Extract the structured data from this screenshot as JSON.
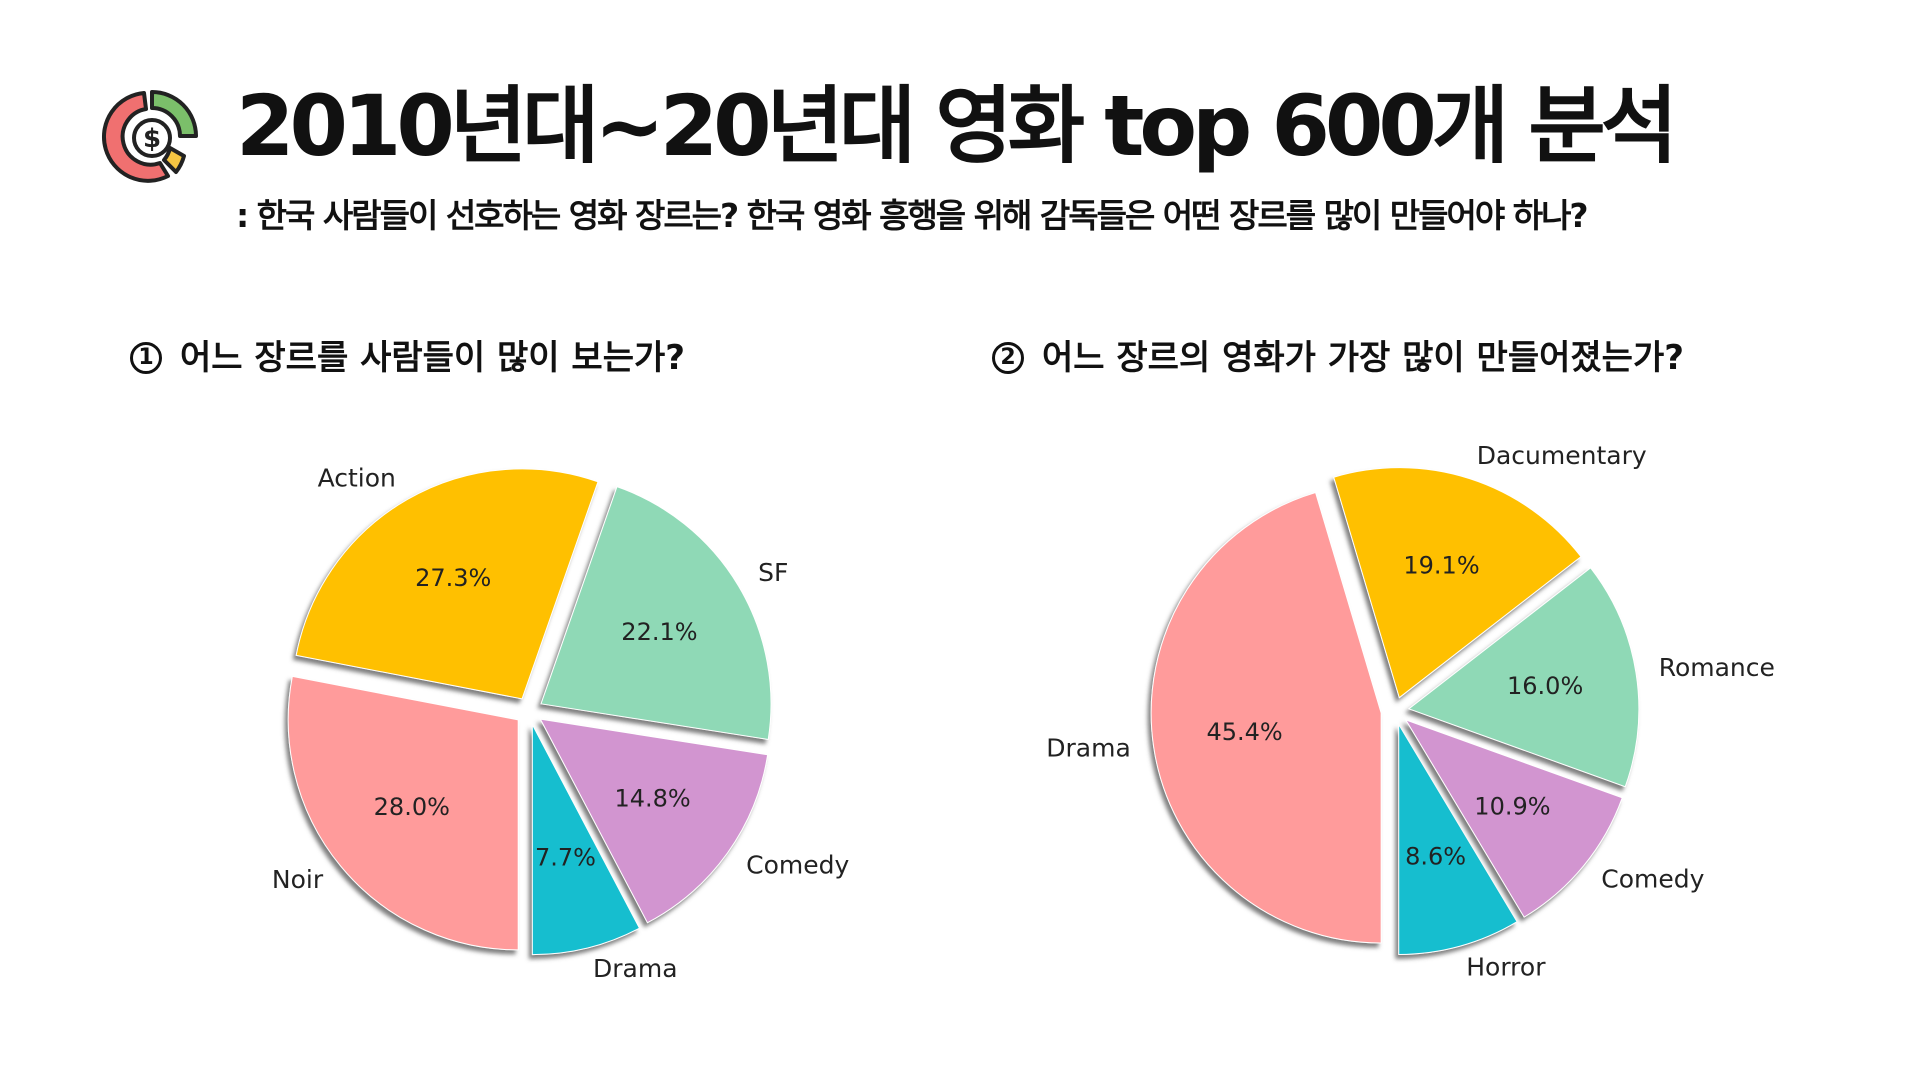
{
  "header": {
    "title": "2010년대~20년대 영화 top 600개 분석",
    "subtitle": ": 한국 사람들이 선호하는 영화 장르는? 한국 영화 흥행을 위해 감독들은 어떤 장르를 많이 만들어야 하나?",
    "logo_icon": "chart-money-icon",
    "logo_colors": [
      "#f07070",
      "#f5c542",
      "#7bbf6a",
      "#222222"
    ]
  },
  "sections": [
    {
      "number": "1",
      "question": "어느 장르를 사람들이 많이 보는가?"
    },
    {
      "number": "2",
      "question": "어느 장르의 영화가 가장 많이 만들어졌는가?"
    }
  ],
  "chart_data": [
    {
      "type": "pie",
      "title": "",
      "start_angle_deg": 270,
      "direction": "counterclockwise",
      "slices": [
        {
          "label": "Drama",
          "value": 7.7,
          "pct_label": "7.7%",
          "color": "#17becf"
        },
        {
          "label": "Comedy",
          "value": 14.8,
          "pct_label": "14.8%",
          "color": "#d295d0"
        },
        {
          "label": "SF",
          "value": 22.1,
          "pct_label": "22.1%",
          "color": "#8fd9b6"
        },
        {
          "label": "Action",
          "value": 27.3,
          "pct_label": "27.3%",
          "color": "#ffc000"
        },
        {
          "label": "Noir",
          "value": 28.0,
          "pct_label": "28.0%",
          "color": "#ff9b9b"
        }
      ]
    },
    {
      "type": "pie",
      "title": "",
      "start_angle_deg": 270,
      "direction": "counterclockwise",
      "slices": [
        {
          "label": "Horror",
          "value": 8.6,
          "pct_label": "8.6%",
          "color": "#17becf"
        },
        {
          "label": "Comedy",
          "value": 10.9,
          "pct_label": "10.9%",
          "color": "#d295d0"
        },
        {
          "label": "Romance",
          "value": 16.0,
          "pct_label": "16.0%",
          "color": "#8fd9b6"
        },
        {
          "label": "Dacumentary",
          "value": 19.1,
          "pct_label": "19.1%",
          "color": "#ffc000"
        },
        {
          "label": "Drama",
          "value": 45.4,
          "pct_label": "45.4%",
          "color": "#ff9b9b"
        }
      ]
    }
  ]
}
